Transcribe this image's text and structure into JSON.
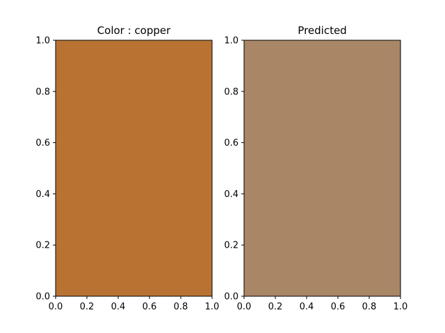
{
  "chart_data": [
    {
      "type": "heatmap",
      "title": "Color : copper",
      "fill_color": "#b87333",
      "xlim": [
        0,
        1
      ],
      "ylim": [
        0,
        1
      ],
      "xticks": [
        "0.0",
        "0.2",
        "0.4",
        "0.6",
        "0.8",
        "1.0"
      ],
      "yticks": [
        "0.0",
        "0.2",
        "0.4",
        "0.6",
        "0.8",
        "1.0"
      ],
      "grid": false
    },
    {
      "type": "heatmap",
      "title": "Predicted",
      "fill_color": "#a98666",
      "xlim": [
        0,
        1
      ],
      "ylim": [
        0,
        1
      ],
      "xticks": [
        "0.0",
        "0.2",
        "0.4",
        "0.6",
        "0.8",
        "1.0"
      ],
      "yticks": [
        "0.0",
        "0.2",
        "0.4",
        "0.6",
        "0.8",
        "1.0"
      ],
      "grid": false
    }
  ]
}
